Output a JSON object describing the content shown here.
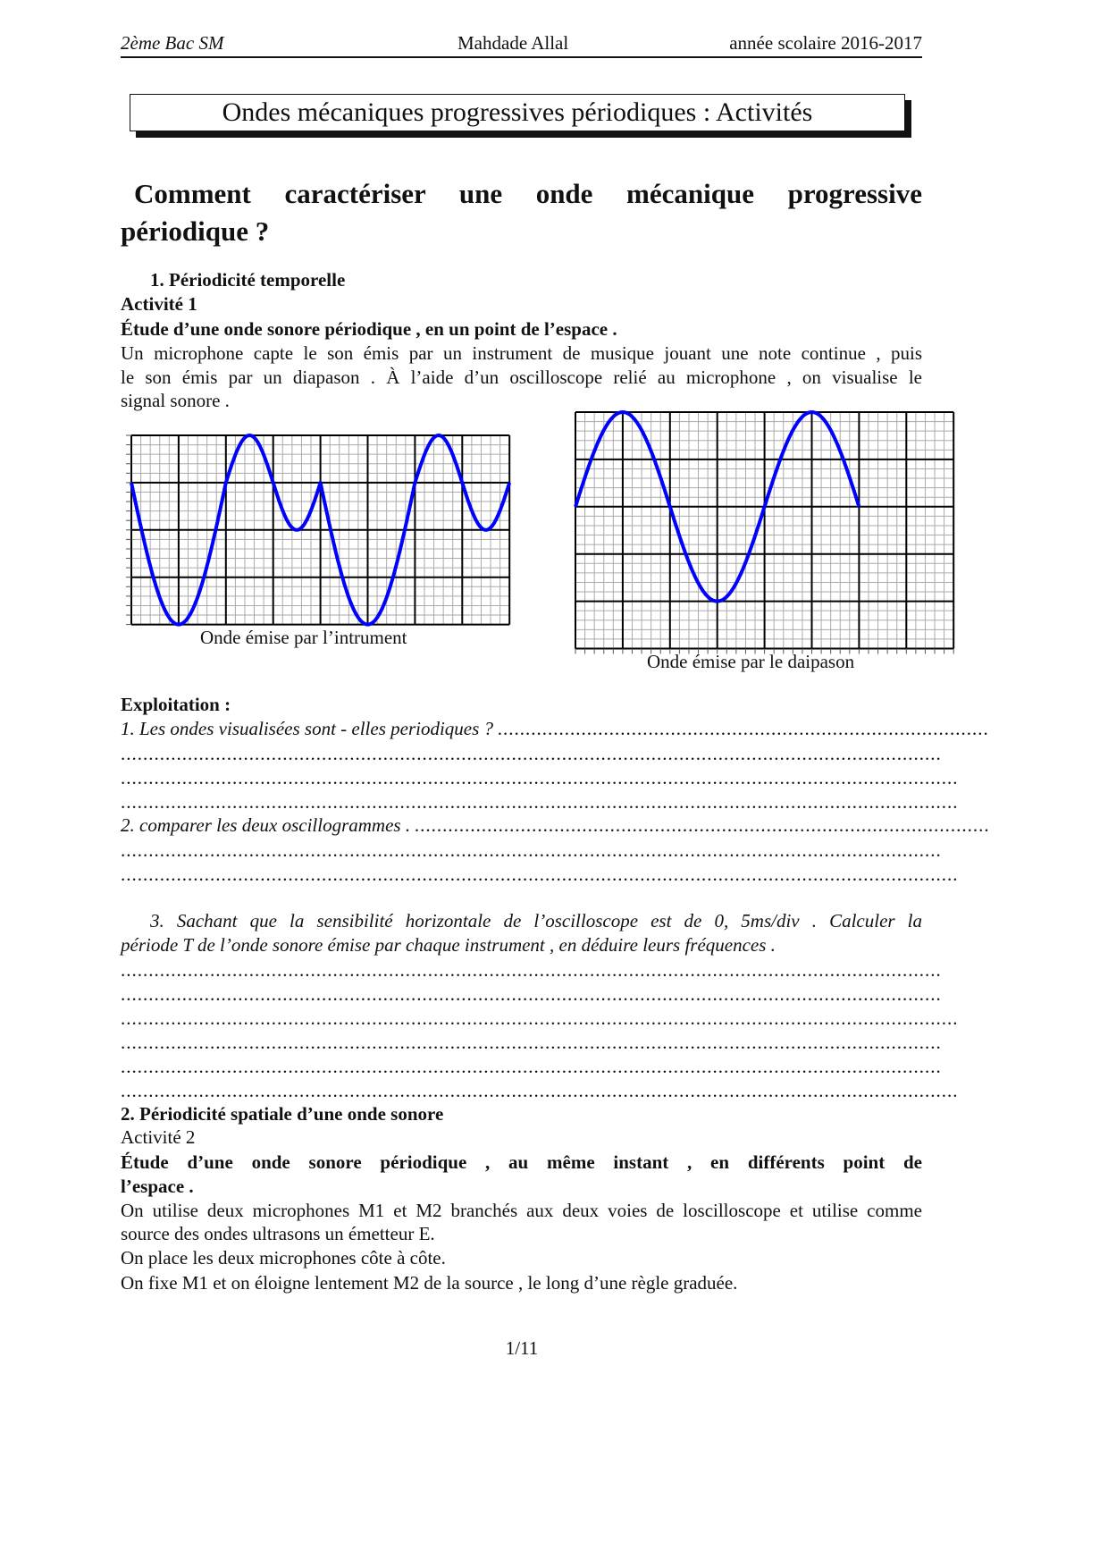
{
  "header": {
    "left": "2ème Bac SM",
    "center": "Mahdade Allal",
    "right": "année scolaire 2016-2017"
  },
  "title": "Ondes mécaniques progressives périodiques : Activités",
  "main_heading": {
    "line1": "Comment caractériser une onde mécanique progressive",
    "line2": "périodique ?"
  },
  "section1": {
    "title": "1. Périodicité temporelle",
    "activity": "Activité 1",
    "subtitle": "Étude d’une onde sonore périodique , en un point de l’espace .",
    "para": [
      "Un microphone capte le son émis par un instrument de musique jouant une note continue , puis",
      "le son émis par un diapason . À l’aide d’un oscilloscope relié au microphone , on visualise le",
      "signal sonore ."
    ],
    "caption_left": "Onde émise par l’intrument",
    "caption_right": "Onde émise par le daipason",
    "exploitation": "Exploitation :",
    "q1": "1. Les ondes visualisées sont - elles periodiques ?",
    "q2": "2. comparer les deux oscillogrammes .",
    "q3": [
      "3. Sachant que la sensibilité horizontale de l’oscilloscope est de 0, 5ms/div . Calculer la",
      "période T de l’onde sonore émise par chaque instrument , en déduire leurs fréquences ."
    ]
  },
  "section2": {
    "title": "2. Périodicité spatiale d’une onde sonore",
    "activity": "Activité 2",
    "subtitle": [
      "Étude d’une onde sonore périodique , au même instant , en différents point de",
      "l’espace ."
    ],
    "para": [
      "On utilise deux microphones M1 et M2 branchés aux deux voies de loscilloscope et utilise comme",
      "source des ondes ultrasons un émetteur E.",
      "On place les deux microphones côte à côte.",
      "On fixe M1 et on éloigne lentement M2 de la source , le long d’une règle graduée."
    ]
  },
  "page_number": "1/11",
  "dots": "..................................................................................................................................................................................................................",
  "chart_data": [
    {
      "type": "line",
      "name_hint": "instrument",
      "grid": true,
      "x_divisions": 8,
      "y_divisions": 4,
      "minor_per_division": 5,
      "color": "#0000ff",
      "xlim": [
        0,
        8
      ],
      "ylim": [
        -3,
        1
      ],
      "key_points": [
        [
          0,
          0
        ],
        [
          1,
          -3
        ],
        [
          2,
          0
        ],
        [
          2.5,
          1
        ],
        [
          3,
          0
        ],
        [
          3.5,
          -1
        ],
        [
          4,
          0
        ],
        [
          5,
          -3
        ],
        [
          6,
          0
        ],
        [
          6.5,
          1
        ],
        [
          7,
          0
        ],
        [
          7.5,
          -1
        ],
        [
          8,
          0
        ]
      ]
    },
    {
      "type": "line",
      "name_hint": "diapason",
      "grid": true,
      "x_divisions": 8,
      "y_divisions": 5,
      "minor_per_division": 5,
      "color": "#0000ff",
      "xlim": [
        0,
        8
      ],
      "ylim": [
        -3,
        2
      ],
      "amplitude_div": 2,
      "period_div": 4,
      "key_points": [
        [
          0,
          0
        ],
        [
          1,
          2
        ],
        [
          2,
          0
        ],
        [
          3,
          -2
        ],
        [
          4,
          0
        ],
        [
          5,
          2
        ],
        [
          6,
          0
        ]
      ]
    }
  ]
}
